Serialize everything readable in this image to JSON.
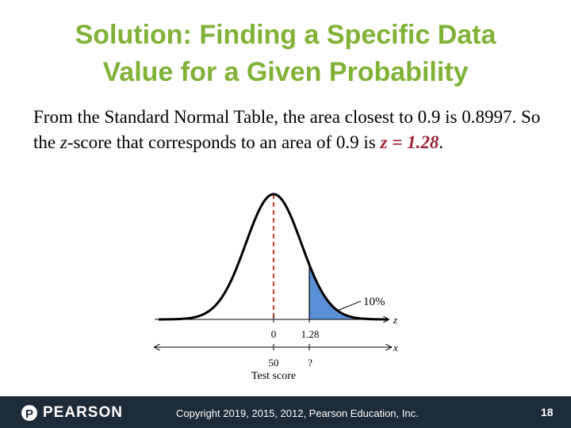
{
  "header": {
    "title_lines": [
      "Solution: Finding a Specific Data",
      "Value for a Given Probability"
    ]
  },
  "body": {
    "runs": [
      "From the Standard Normal Table, the area closest to 0.9 is 0.8997. So the ",
      "z",
      "-score that corresponds to an area of 0.9 is ",
      "z = 1.28",
      "."
    ]
  },
  "figure": {
    "area_label": "10%",
    "z_axis_label": "z",
    "x_axis_label": "x",
    "z_ticks": [
      "0",
      "1.28"
    ],
    "x_ticks": [
      "50",
      "?"
    ],
    "x_title": "Test score"
  },
  "footer": {
    "logo": "PEARSON",
    "copyright": "Copyright 2019, 2015, 2012, Pearson Education, Inc.",
    "page": "18"
  }
}
